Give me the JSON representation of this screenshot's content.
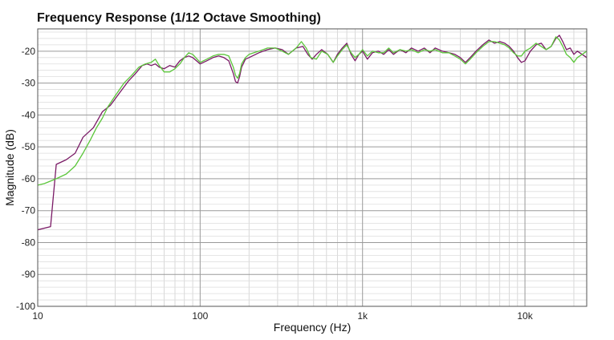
{
  "chart_data": {
    "type": "line",
    "title": "Frequency Response (1/12 Octave Smoothing)",
    "xlabel": "Frequency (Hz)",
    "ylabel": "Magnitude (dB)",
    "x_scale": "log",
    "xlim": [
      10,
      24000
    ],
    "ylim": [
      -100,
      -13
    ],
    "grid": true,
    "x_ticks": [
      {
        "value": 10,
        "label": "10"
      },
      {
        "value": 100,
        "label": "100"
      },
      {
        "value": 1000,
        "label": "1k"
      },
      {
        "value": 10000,
        "label": "10k"
      }
    ],
    "y_ticks": [
      {
        "value": -20,
        "label": "-20"
      },
      {
        "value": -30,
        "label": "-30"
      },
      {
        "value": -40,
        "label": "-40"
      },
      {
        "value": -50,
        "label": "-50"
      },
      {
        "value": -60,
        "label": "-60"
      },
      {
        "value": -70,
        "label": "-70"
      },
      {
        "value": -80,
        "label": "-80"
      },
      {
        "value": -90,
        "label": "-90"
      },
      {
        "value": -100,
        "label": "-100"
      }
    ],
    "series": [
      {
        "color": "#7a1a66",
        "points": [
          [
            10,
            -76
          ],
          [
            12,
            -75
          ],
          [
            13,
            -55.5
          ],
          [
            15,
            -54
          ],
          [
            17,
            -52
          ],
          [
            19,
            -47
          ],
          [
            22,
            -44
          ],
          [
            25,
            -39
          ],
          [
            28,
            -37
          ],
          [
            32,
            -33
          ],
          [
            36,
            -29.5
          ],
          [
            40,
            -27
          ],
          [
            44,
            -24.5
          ],
          [
            47,
            -24
          ],
          [
            50,
            -24.5
          ],
          [
            53,
            -24
          ],
          [
            56,
            -25
          ],
          [
            60,
            -25.5
          ],
          [
            65,
            -24.5
          ],
          [
            70,
            -25
          ],
          [
            75,
            -23
          ],
          [
            80,
            -22
          ],
          [
            85,
            -21.5
          ],
          [
            90,
            -22
          ],
          [
            100,
            -24
          ],
          [
            110,
            -23
          ],
          [
            120,
            -22
          ],
          [
            130,
            -21.5
          ],
          [
            140,
            -22
          ],
          [
            150,
            -23
          ],
          [
            160,
            -27
          ],
          [
            165,
            -29.5
          ],
          [
            170,
            -30
          ],
          [
            175,
            -28
          ],
          [
            180,
            -25
          ],
          [
            190,
            -22.5
          ],
          [
            200,
            -22
          ],
          [
            230,
            -20.5
          ],
          [
            260,
            -19.5
          ],
          [
            290,
            -19
          ],
          [
            320,
            -19.5
          ],
          [
            350,
            -21
          ],
          [
            390,
            -19
          ],
          [
            430,
            -18.5
          ],
          [
            460,
            -21
          ],
          [
            490,
            -22.5
          ],
          [
            520,
            -21
          ],
          [
            560,
            -19.5
          ],
          [
            610,
            -21
          ],
          [
            660,
            -23.5
          ],
          [
            700,
            -21
          ],
          [
            750,
            -19
          ],
          [
            800,
            -17.5
          ],
          [
            850,
            -21
          ],
          [
            900,
            -23
          ],
          [
            950,
            -21
          ],
          [
            1000,
            -20
          ],
          [
            1070,
            -22.5
          ],
          [
            1150,
            -20.5
          ],
          [
            1250,
            -20
          ],
          [
            1350,
            -21
          ],
          [
            1450,
            -19.5
          ],
          [
            1550,
            -21
          ],
          [
            1700,
            -19.5
          ],
          [
            1850,
            -20.5
          ],
          [
            2000,
            -19
          ],
          [
            2200,
            -20
          ],
          [
            2400,
            -19
          ],
          [
            2600,
            -20.5
          ],
          [
            2800,
            -19
          ],
          [
            3100,
            -20
          ],
          [
            3400,
            -20.5
          ],
          [
            3700,
            -21
          ],
          [
            4000,
            -22
          ],
          [
            4300,
            -23.5
          ],
          [
            4600,
            -22
          ],
          [
            5000,
            -20
          ],
          [
            5500,
            -18
          ],
          [
            6000,
            -16.5
          ],
          [
            6500,
            -17.5
          ],
          [
            7000,
            -17
          ],
          [
            7500,
            -17.5
          ],
          [
            8000,
            -18.5
          ],
          [
            8500,
            -20
          ],
          [
            9000,
            -22
          ],
          [
            9500,
            -23.5
          ],
          [
            10000,
            -23
          ],
          [
            10800,
            -20
          ],
          [
            11700,
            -18
          ],
          [
            12600,
            -17.5
          ],
          [
            13500,
            -19.5
          ],
          [
            14500,
            -18.5
          ],
          [
            15500,
            -16
          ],
          [
            16300,
            -15
          ],
          [
            17100,
            -17
          ],
          [
            18000,
            -19.5
          ],
          [
            19000,
            -19
          ],
          [
            20000,
            -21
          ],
          [
            21000,
            -20
          ],
          [
            22500,
            -21
          ],
          [
            24000,
            -22
          ]
        ]
      },
      {
        "color": "#5bc63a",
        "points": [
          [
            10,
            -62
          ],
          [
            11,
            -61.5
          ],
          [
            13,
            -60
          ],
          [
            15,
            -58.5
          ],
          [
            17,
            -56
          ],
          [
            19,
            -52
          ],
          [
            21,
            -48
          ],
          [
            23,
            -44
          ],
          [
            25,
            -41
          ],
          [
            27,
            -37.5
          ],
          [
            30,
            -34
          ],
          [
            34,
            -30
          ],
          [
            38,
            -27.5
          ],
          [
            42,
            -25
          ],
          [
            46,
            -24
          ],
          [
            50,
            -23.5
          ],
          [
            53,
            -22.5
          ],
          [
            56,
            -24.5
          ],
          [
            60,
            -26.5
          ],
          [
            65,
            -26.5
          ],
          [
            70,
            -25.5
          ],
          [
            75,
            -24
          ],
          [
            80,
            -22
          ],
          [
            85,
            -20.5
          ],
          [
            90,
            -21
          ],
          [
            100,
            -23.5
          ],
          [
            110,
            -22.5
          ],
          [
            120,
            -21.5
          ],
          [
            130,
            -21
          ],
          [
            140,
            -21
          ],
          [
            150,
            -21.5
          ],
          [
            160,
            -25
          ],
          [
            165,
            -27.5
          ],
          [
            170,
            -28.5
          ],
          [
            175,
            -27
          ],
          [
            180,
            -24
          ],
          [
            190,
            -22
          ],
          [
            200,
            -21
          ],
          [
            230,
            -20
          ],
          [
            260,
            -19
          ],
          [
            290,
            -19
          ],
          [
            320,
            -20
          ],
          [
            350,
            -21
          ],
          [
            390,
            -19
          ],
          [
            420,
            -17
          ],
          [
            450,
            -19
          ],
          [
            480,
            -22
          ],
          [
            520,
            -22.5
          ],
          [
            560,
            -20
          ],
          [
            610,
            -21
          ],
          [
            660,
            -23.5
          ],
          [
            700,
            -21.5
          ],
          [
            750,
            -19.5
          ],
          [
            800,
            -18
          ],
          [
            850,
            -20.5
          ],
          [
            900,
            -22
          ],
          [
            950,
            -21
          ],
          [
            1000,
            -19.5
          ],
          [
            1070,
            -21.5
          ],
          [
            1150,
            -20
          ],
          [
            1250,
            -20.5
          ],
          [
            1350,
            -20.5
          ],
          [
            1450,
            -19
          ],
          [
            1550,
            -20.5
          ],
          [
            1700,
            -19.5
          ],
          [
            1850,
            -20
          ],
          [
            2000,
            -19.5
          ],
          [
            2200,
            -20.5
          ],
          [
            2400,
            -19.5
          ],
          [
            2600,
            -20
          ],
          [
            2800,
            -19.5
          ],
          [
            3100,
            -20.5
          ],
          [
            3400,
            -20.5
          ],
          [
            3700,
            -21.5
          ],
          [
            4000,
            -22.5
          ],
          [
            4300,
            -24
          ],
          [
            4600,
            -22.5
          ],
          [
            5000,
            -20.5
          ],
          [
            5500,
            -18.5
          ],
          [
            6000,
            -17
          ],
          [
            6500,
            -17
          ],
          [
            7000,
            -17.5
          ],
          [
            7500,
            -18
          ],
          [
            8000,
            -19
          ],
          [
            8500,
            -20.5
          ],
          [
            9000,
            -21.5
          ],
          [
            9500,
            -21.5
          ],
          [
            10000,
            -20
          ],
          [
            10800,
            -19
          ],
          [
            11700,
            -17.5
          ],
          [
            12600,
            -18.5
          ],
          [
            13500,
            -19.5
          ],
          [
            14500,
            -18.5
          ],
          [
            15500,
            -15.5
          ],
          [
            16300,
            -16.5
          ],
          [
            17100,
            -18.5
          ],
          [
            18000,
            -21
          ],
          [
            19000,
            -22
          ],
          [
            20000,
            -23.5
          ],
          [
            21000,
            -22
          ],
          [
            22500,
            -21
          ],
          [
            24000,
            -20
          ]
        ]
      }
    ]
  }
}
